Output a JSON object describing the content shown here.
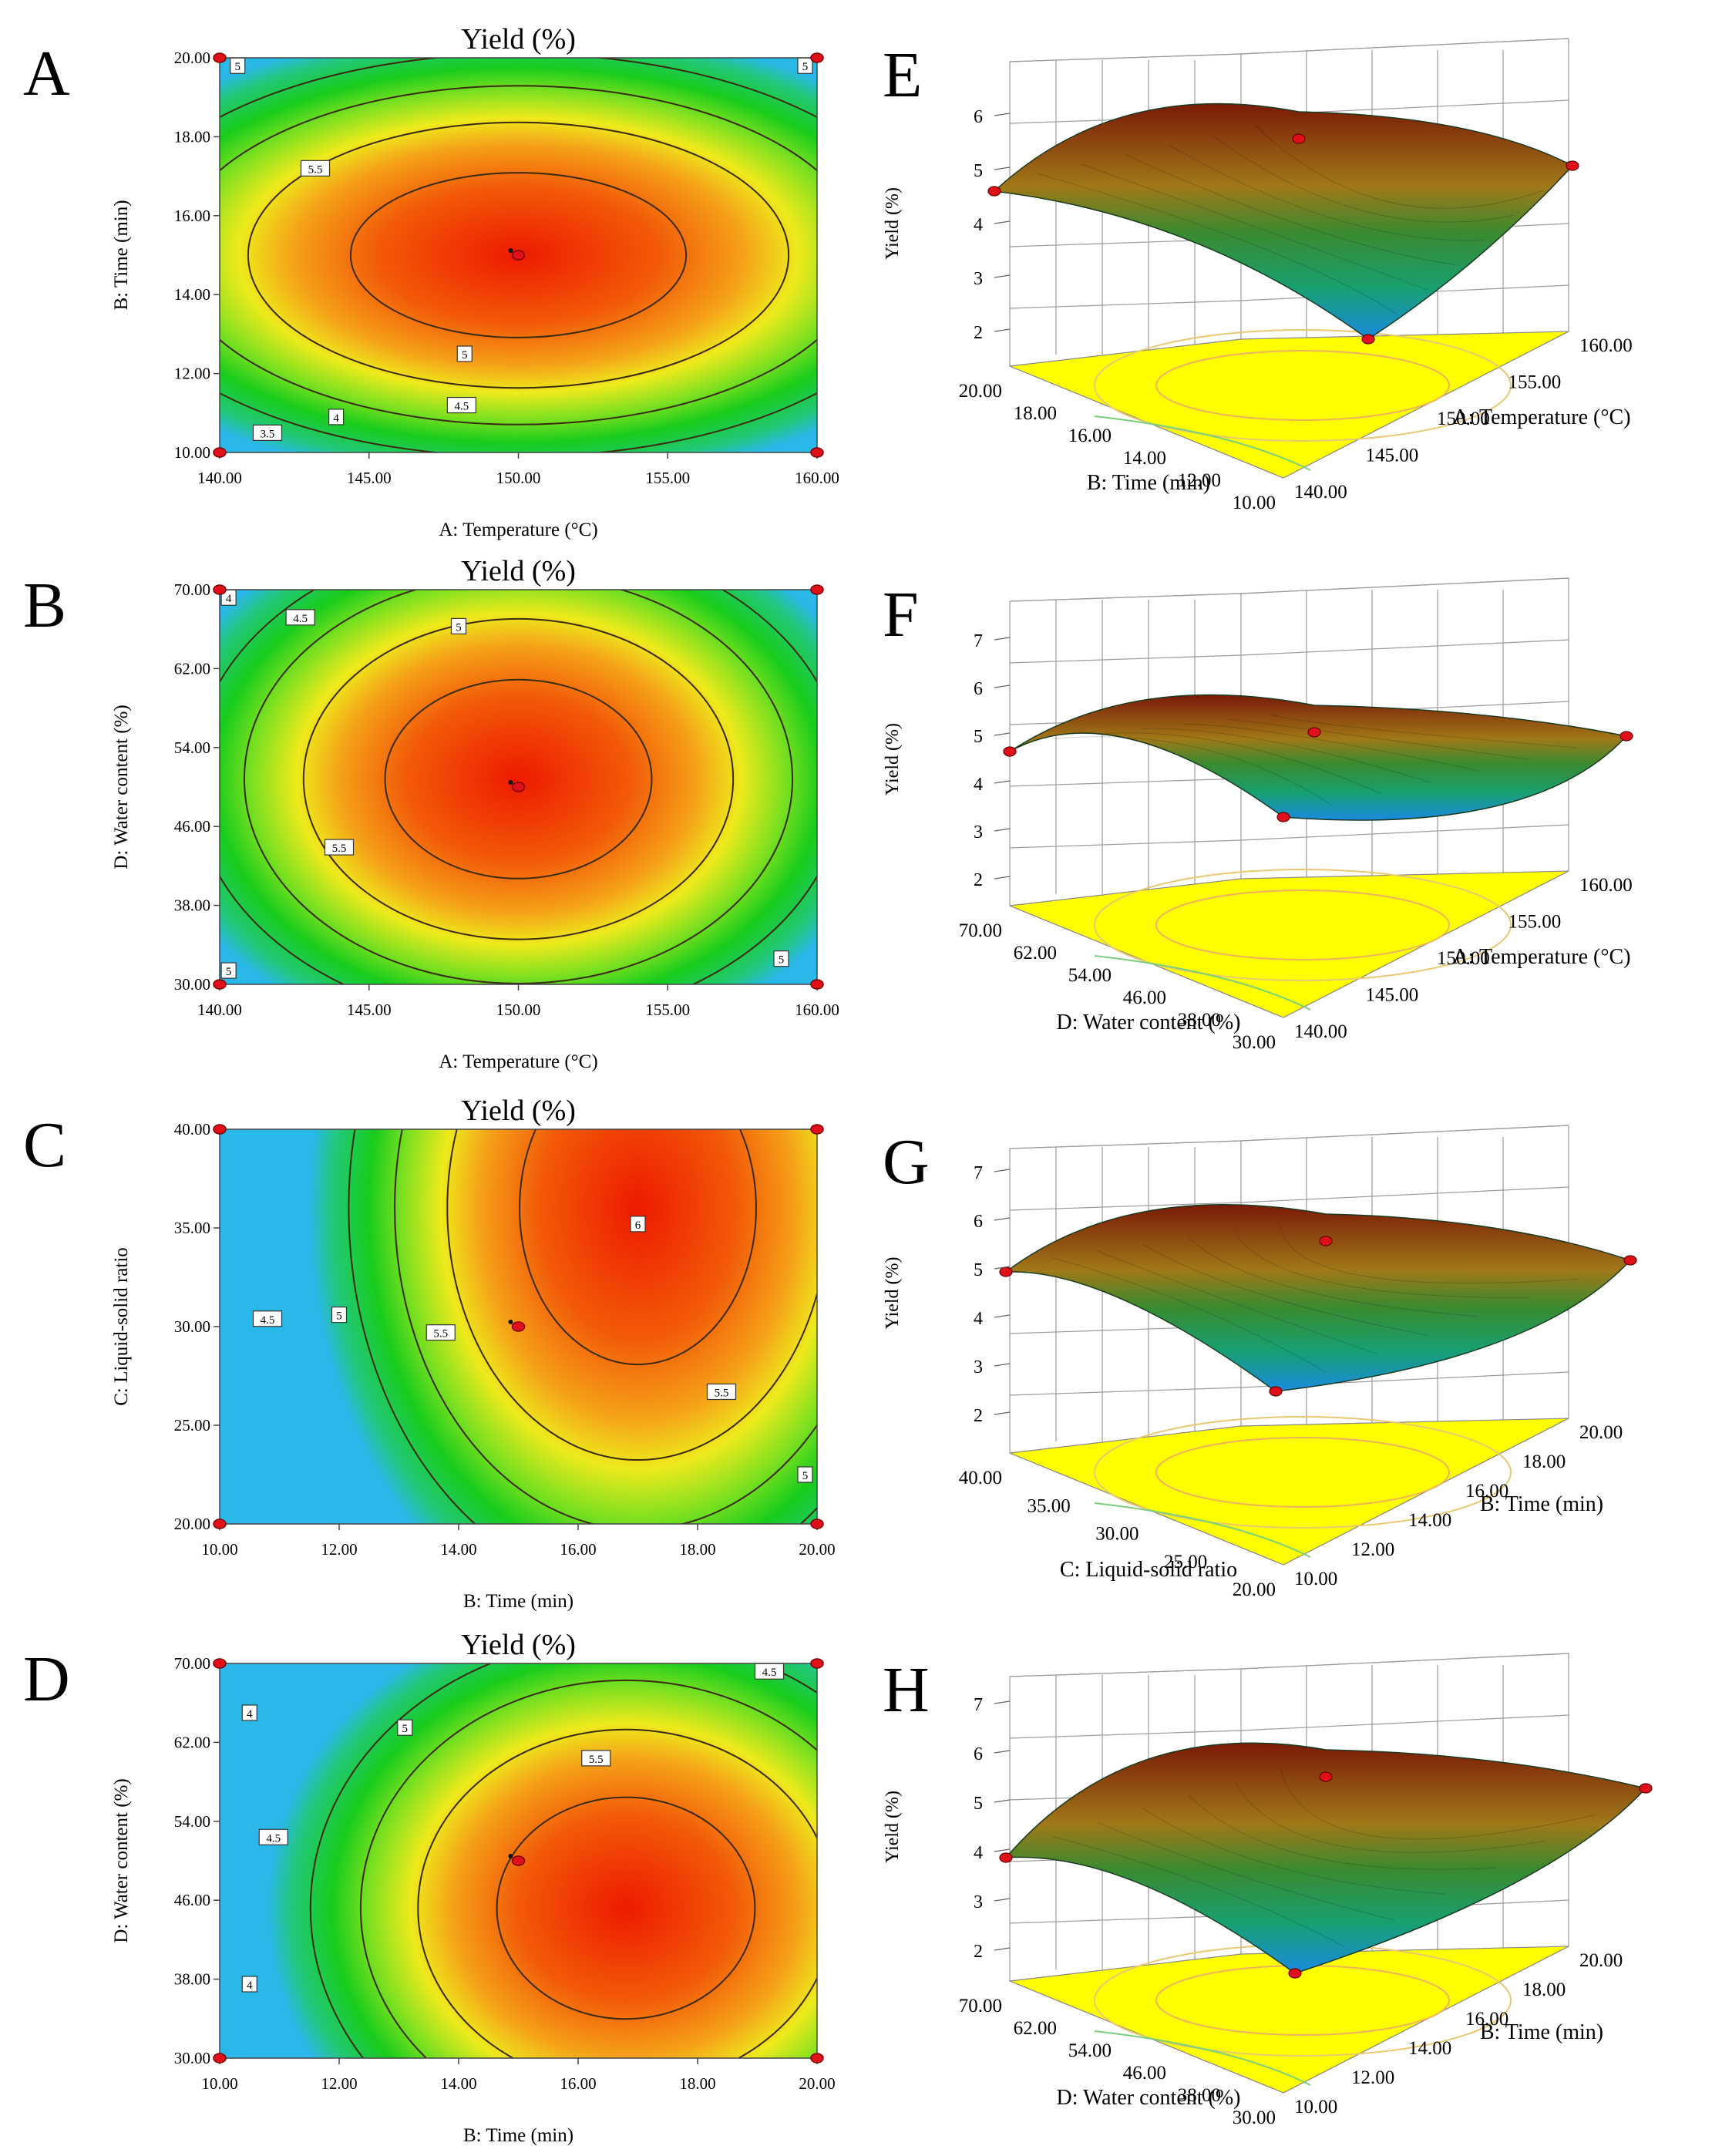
{
  "chart_data": [
    {
      "type": "contour",
      "panel_letter": "A",
      "title": "Yield (%)",
      "xlabel": "A: Temperature (°C)",
      "ylabel": "B: Time (min)",
      "xlim": [
        140,
        160
      ],
      "ylim": [
        10,
        20
      ],
      "xticks": [
        "140.00",
        "145.00",
        "150.00",
        "155.00",
        "160.00"
      ],
      "yticks": [
        "10.00",
        "12.00",
        "14.00",
        "16.00",
        "18.00",
        "20.00"
      ],
      "optimum": [
        150,
        15
      ],
      "contour_labels": [
        {
          "text": "5",
          "x": 140.6,
          "y": 19.8
        },
        {
          "text": "5",
          "x": 159.6,
          "y": 19.8
        },
        {
          "text": "5.5",
          "x": 143.2,
          "y": 17.2
        },
        {
          "text": "5",
          "x": 148.2,
          "y": 12.5
        },
        {
          "text": "4.5",
          "x": 148.1,
          "y": 11.2
        },
        {
          "text": "4",
          "x": 143.9,
          "y": 10.9
        },
        {
          "text": "3.5",
          "x": 141.6,
          "y": 10.5
        }
      ],
      "design_points": [
        [
          140,
          10
        ],
        [
          140,
          20
        ],
        [
          160,
          10
        ],
        [
          160,
          20
        ],
        [
          150,
          15
        ]
      ]
    },
    {
      "type": "contour",
      "panel_letter": "B",
      "title": "Yield (%)",
      "xlabel": "A: Temperature (°C)",
      "ylabel": "D: Water content (%)",
      "xlim": [
        140,
        160
      ],
      "ylim": [
        30,
        70
      ],
      "xticks": [
        "140.00",
        "145.00",
        "150.00",
        "155.00",
        "160.00"
      ],
      "yticks": [
        "30.00",
        "38.00",
        "46.00",
        "54.00",
        "62.00",
        "70.00"
      ],
      "optimum": [
        150,
        50
      ],
      "contour_labels": [
        {
          "text": "4",
          "x": 140.3,
          "y": 69.2
        },
        {
          "text": "4.5",
          "x": 142.7,
          "y": 67.2
        },
        {
          "text": "5",
          "x": 148.0,
          "y": 66.3
        },
        {
          "text": "5.5",
          "x": 144.0,
          "y": 43.9
        },
        {
          "text": "5",
          "x": 140.3,
          "y": 31.4
        },
        {
          "text": "5",
          "x": 158.8,
          "y": 32.6
        }
      ],
      "design_points": [
        [
          140,
          30
        ],
        [
          140,
          70
        ],
        [
          160,
          30
        ],
        [
          160,
          70
        ],
        [
          150,
          50
        ]
      ]
    },
    {
      "type": "contour",
      "panel_letter": "C",
      "title": "Yield (%)",
      "xlabel": "B: Time (min)",
      "ylabel": "C: Liquid-solid ratio",
      "xlim": [
        10,
        20
      ],
      "ylim": [
        20,
        40
      ],
      "xticks": [
        "10.00",
        "12.00",
        "14.00",
        "16.00",
        "18.00",
        "20.00"
      ],
      "yticks": [
        "20.00",
        "25.00",
        "30.00",
        "35.00",
        "40.00"
      ],
      "optimum": [
        15,
        30
      ],
      "contour_labels": [
        {
          "text": "4.5",
          "x": 10.8,
          "y": 30.4
        },
        {
          "text": "5",
          "x": 12.0,
          "y": 30.6
        },
        {
          "text": "5.5",
          "x": 13.7,
          "y": 29.7
        },
        {
          "text": "6",
          "x": 17.0,
          "y": 35.2
        },
        {
          "text": "5.5",
          "x": 18.4,
          "y": 26.7
        },
        {
          "text": "5",
          "x": 19.8,
          "y": 22.5
        }
      ],
      "design_points": [
        [
          10,
          20
        ],
        [
          10,
          40
        ],
        [
          20,
          20
        ],
        [
          20,
          40
        ],
        [
          15,
          30
        ]
      ]
    },
    {
      "type": "contour",
      "panel_letter": "D",
      "title": "Yield (%)",
      "xlabel": "B: Time (min)",
      "ylabel": "D: Water content (%)",
      "xlim": [
        10,
        20
      ],
      "ylim": [
        30,
        70
      ],
      "xticks": [
        "10.00",
        "12.00",
        "14.00",
        "16.00",
        "18.00",
        "20.00"
      ],
      "yticks": [
        "30.00",
        "38.00",
        "46.00",
        "54.00",
        "62.00",
        "70.00"
      ],
      "optimum": [
        15,
        50
      ],
      "contour_labels": [
        {
          "text": "4",
          "x": 10.5,
          "y": 65.0
        },
        {
          "text": "4.5",
          "x": 10.9,
          "y": 52.4
        },
        {
          "text": "5",
          "x": 13.1,
          "y": 63.5
        },
        {
          "text": "5.5",
          "x": 16.3,
          "y": 60.4
        },
        {
          "text": "4",
          "x": 10.5,
          "y": 37.5
        },
        {
          "text": "4.5",
          "x": 19.2,
          "y": 69.2
        }
      ],
      "design_points": [
        [
          10,
          30
        ],
        [
          10,
          70
        ],
        [
          20,
          30
        ],
        [
          20,
          70
        ],
        [
          15,
          50
        ]
      ]
    },
    {
      "type": "surface3d",
      "panel_letter": "E",
      "zlabel": "Yield (%)",
      "xlabel": "A: Temperature (°C)",
      "ylabel": "B: Time (min)",
      "xlim": [
        140,
        160
      ],
      "ylim": [
        10,
        20
      ],
      "zlim": [
        2,
        6
      ],
      "xticks": [
        "140.00",
        "145.00",
        "150.00",
        "155.00",
        "160.00"
      ],
      "yticks": [
        "10.00",
        "12.00",
        "14.00",
        "16.00",
        "18.00",
        "20.00"
      ],
      "zticks": [
        "2",
        "3",
        "4",
        "5",
        "6"
      ]
    },
    {
      "type": "surface3d",
      "panel_letter": "F",
      "zlabel": "Yield (%)",
      "xlabel": "A: Temperature (°C)",
      "ylabel": "D: Water content (%)",
      "xlim": [
        140,
        160
      ],
      "ylim": [
        30,
        70
      ],
      "zlim": [
        2,
        7
      ],
      "xticks": [
        "140.00",
        "145.00",
        "150.00",
        "155.00",
        "160.00"
      ],
      "yticks": [
        "30.00",
        "38.00",
        "46.00",
        "54.00",
        "62.00",
        "70.00"
      ],
      "zticks": [
        "2",
        "3",
        "4",
        "5",
        "6",
        "7"
      ]
    },
    {
      "type": "surface3d",
      "panel_letter": "G",
      "zlabel": "Yield (%)",
      "xlabel": "B: Time (min)",
      "ylabel": "C: Liquid-solid ratio",
      "xlim": [
        10,
        20
      ],
      "ylim": [
        20,
        40
      ],
      "zlim": [
        2,
        7
      ],
      "xticks": [
        "10.00",
        "12.00",
        "14.00",
        "16.00",
        "18.00",
        "20.00"
      ],
      "yticks": [
        "20.00",
        "25.00",
        "30.00",
        "35.00",
        "40.00"
      ],
      "zticks": [
        "2",
        "3",
        "4",
        "5",
        "6",
        "7"
      ]
    },
    {
      "type": "surface3d",
      "panel_letter": "H",
      "zlabel": "Yield (%)",
      "xlabel": "B: Time (min)",
      "ylabel": "D: Water content (%)",
      "xlim": [
        10,
        20
      ],
      "ylim": [
        30,
        70
      ],
      "zlim": [
        2,
        7
      ],
      "xticks": [
        "10.00",
        "12.00",
        "14.00",
        "16.00",
        "18.00",
        "20.00"
      ],
      "yticks": [
        "30.00",
        "38.00",
        "46.00",
        "54.00",
        "62.00",
        "70.00"
      ],
      "zticks": [
        "2",
        "3",
        "4",
        "5",
        "6",
        "7"
      ]
    }
  ]
}
